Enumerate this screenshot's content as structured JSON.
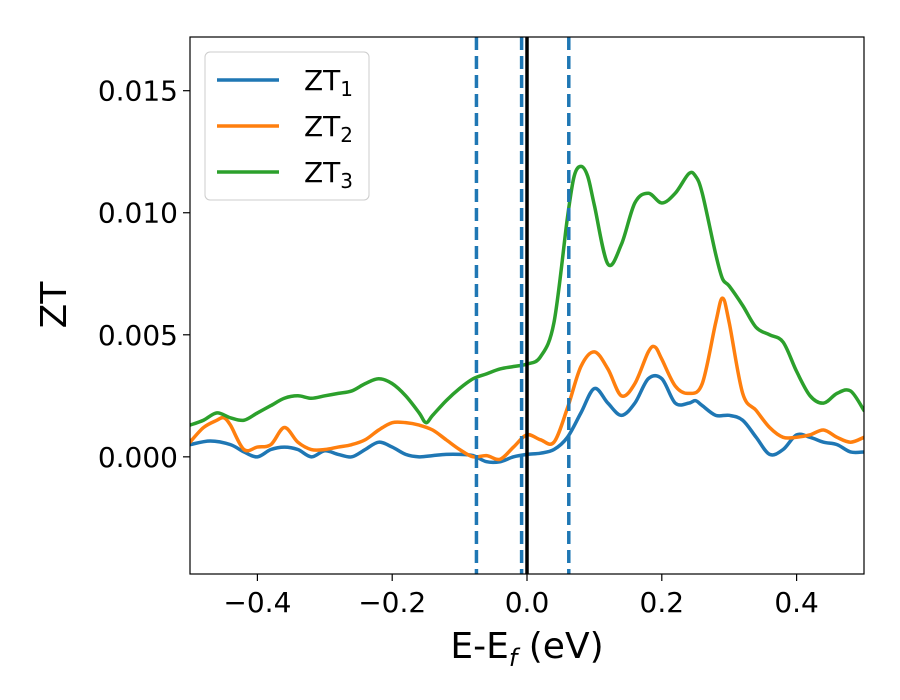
{
  "chart_data": {
    "type": "line",
    "title": "",
    "xlabel": "E-E",
    "xlabel_sub": "f",
    "xlabel_unit": " (eV)",
    "ylabel": "ZT",
    "xlim": [
      -0.5,
      0.5
    ],
    "ylim": [
      -0.0048,
      0.0172
    ],
    "xticks": [
      -0.4,
      -0.2,
      0.0,
      0.2,
      0.4
    ],
    "xtick_labels": [
      "−0.4",
      "−0.2",
      "0.0",
      "0.2",
      "0.4"
    ],
    "yticks": [
      0.0,
      0.005,
      0.01,
      0.015
    ],
    "ytick_labels": [
      "0.000",
      "0.005",
      "0.010",
      "0.015"
    ],
    "grid": false,
    "legend_position": "top-left",
    "vlines": [
      {
        "x": -0.075,
        "style": "dashed",
        "color": "#1f77b4"
      },
      {
        "x": -0.008,
        "style": "dashed",
        "color": "#1f77b4"
      },
      {
        "x": 0.062,
        "style": "dashed",
        "color": "#1f77b4"
      },
      {
        "x": 0.0,
        "style": "solid",
        "color": "#000000"
      }
    ],
    "series": [
      {
        "name": "ZT",
        "name_sub": "1",
        "color": "#1f77b4",
        "x": [
          -0.5,
          -0.47,
          -0.44,
          -0.42,
          -0.4,
          -0.38,
          -0.36,
          -0.34,
          -0.32,
          -0.3,
          -0.28,
          -0.26,
          -0.24,
          -0.22,
          -0.2,
          -0.18,
          -0.16,
          -0.14,
          -0.12,
          -0.1,
          -0.08,
          -0.06,
          -0.04,
          -0.02,
          0.0,
          0.02,
          0.04,
          0.06,
          0.08,
          0.1,
          0.12,
          0.14,
          0.16,
          0.18,
          0.2,
          0.22,
          0.24,
          0.25,
          0.26,
          0.28,
          0.3,
          0.32,
          0.34,
          0.36,
          0.38,
          0.4,
          0.42,
          0.44,
          0.46,
          0.48,
          0.5
        ],
        "y": [
          0.0005,
          0.00065,
          0.0005,
          0.0002,
          0.0,
          0.0003,
          0.0004,
          0.0003,
          0.0,
          0.00025,
          0.0001,
          0.0,
          0.0003,
          0.0006,
          0.0004,
          0.0001,
          0.0,
          5e-05,
          0.0001,
          0.0001,
          5e-05,
          -0.0002,
          -0.0002,
          0.0,
          0.0001,
          0.00015,
          0.0003,
          0.0008,
          0.0018,
          0.0028,
          0.0022,
          0.0017,
          0.0022,
          0.0032,
          0.0032,
          0.0022,
          0.0022,
          0.0023,
          0.0021,
          0.0017,
          0.0017,
          0.0015,
          0.0008,
          0.0001,
          0.0003,
          0.0009,
          0.0008,
          0.0006,
          0.0005,
          0.0002,
          0.0002
        ]
      },
      {
        "name": "ZT",
        "name_sub": "2",
        "color": "#ff7f0e",
        "x": [
          -0.5,
          -0.48,
          -0.46,
          -0.45,
          -0.44,
          -0.42,
          -0.4,
          -0.38,
          -0.36,
          -0.34,
          -0.32,
          -0.3,
          -0.28,
          -0.26,
          -0.24,
          -0.22,
          -0.2,
          -0.18,
          -0.16,
          -0.14,
          -0.12,
          -0.1,
          -0.08,
          -0.06,
          -0.04,
          -0.02,
          0.0,
          0.02,
          0.04,
          0.06,
          0.08,
          0.1,
          0.12,
          0.14,
          0.16,
          0.18,
          0.19,
          0.2,
          0.22,
          0.24,
          0.26,
          0.28,
          0.29,
          0.3,
          0.32,
          0.34,
          0.36,
          0.38,
          0.4,
          0.42,
          0.44,
          0.46,
          0.48,
          0.5
        ],
        "y": [
          0.0006,
          0.0012,
          0.0015,
          0.0016,
          0.0013,
          0.0003,
          0.0004,
          0.0005,
          0.0012,
          0.0006,
          0.0003,
          0.0003,
          0.0004,
          0.0005,
          0.0007,
          0.0011,
          0.0014,
          0.0014,
          0.0013,
          0.0011,
          0.0007,
          0.0003,
          0.0,
          5e-05,
          -0.0001,
          0.0004,
          0.0009,
          0.0007,
          0.0006,
          0.002,
          0.0037,
          0.0043,
          0.0036,
          0.0025,
          0.003,
          0.0043,
          0.0045,
          0.004,
          0.0029,
          0.0026,
          0.003,
          0.0055,
          0.0065,
          0.0055,
          0.0026,
          0.0019,
          0.0012,
          0.0008,
          0.0008,
          0.0009,
          0.0011,
          0.0008,
          0.0006,
          0.0008
        ]
      },
      {
        "name": "ZT",
        "name_sub": "3",
        "color": "#2ca02c",
        "x": [
          -0.5,
          -0.48,
          -0.46,
          -0.44,
          -0.42,
          -0.4,
          -0.38,
          -0.36,
          -0.34,
          -0.32,
          -0.3,
          -0.28,
          -0.26,
          -0.24,
          -0.22,
          -0.2,
          -0.18,
          -0.16,
          -0.15,
          -0.14,
          -0.12,
          -0.1,
          -0.08,
          -0.06,
          -0.04,
          -0.02,
          0.0,
          0.02,
          0.04,
          0.06,
          0.07,
          0.08,
          0.09,
          0.1,
          0.12,
          0.14,
          0.16,
          0.18,
          0.2,
          0.22,
          0.24,
          0.25,
          0.26,
          0.28,
          0.29,
          0.3,
          0.32,
          0.34,
          0.36,
          0.38,
          0.4,
          0.42,
          0.44,
          0.46,
          0.48,
          0.5
        ],
        "y": [
          0.0013,
          0.0015,
          0.0018,
          0.0016,
          0.0015,
          0.0018,
          0.0021,
          0.0024,
          0.0025,
          0.0024,
          0.0025,
          0.0026,
          0.0027,
          0.003,
          0.0032,
          0.003,
          0.0025,
          0.0018,
          0.0014,
          0.0017,
          0.0023,
          0.0028,
          0.0032,
          0.0034,
          0.0036,
          0.0037,
          0.0038,
          0.0041,
          0.0055,
          0.0098,
          0.0115,
          0.0119,
          0.0115,
          0.0103,
          0.0079,
          0.0087,
          0.0104,
          0.0108,
          0.0104,
          0.0108,
          0.0116,
          0.0115,
          0.0108,
          0.0083,
          0.0073,
          0.007,
          0.0062,
          0.0053,
          0.005,
          0.0047,
          0.0035,
          0.0025,
          0.0022,
          0.0026,
          0.0027,
          0.0019
        ]
      }
    ]
  }
}
